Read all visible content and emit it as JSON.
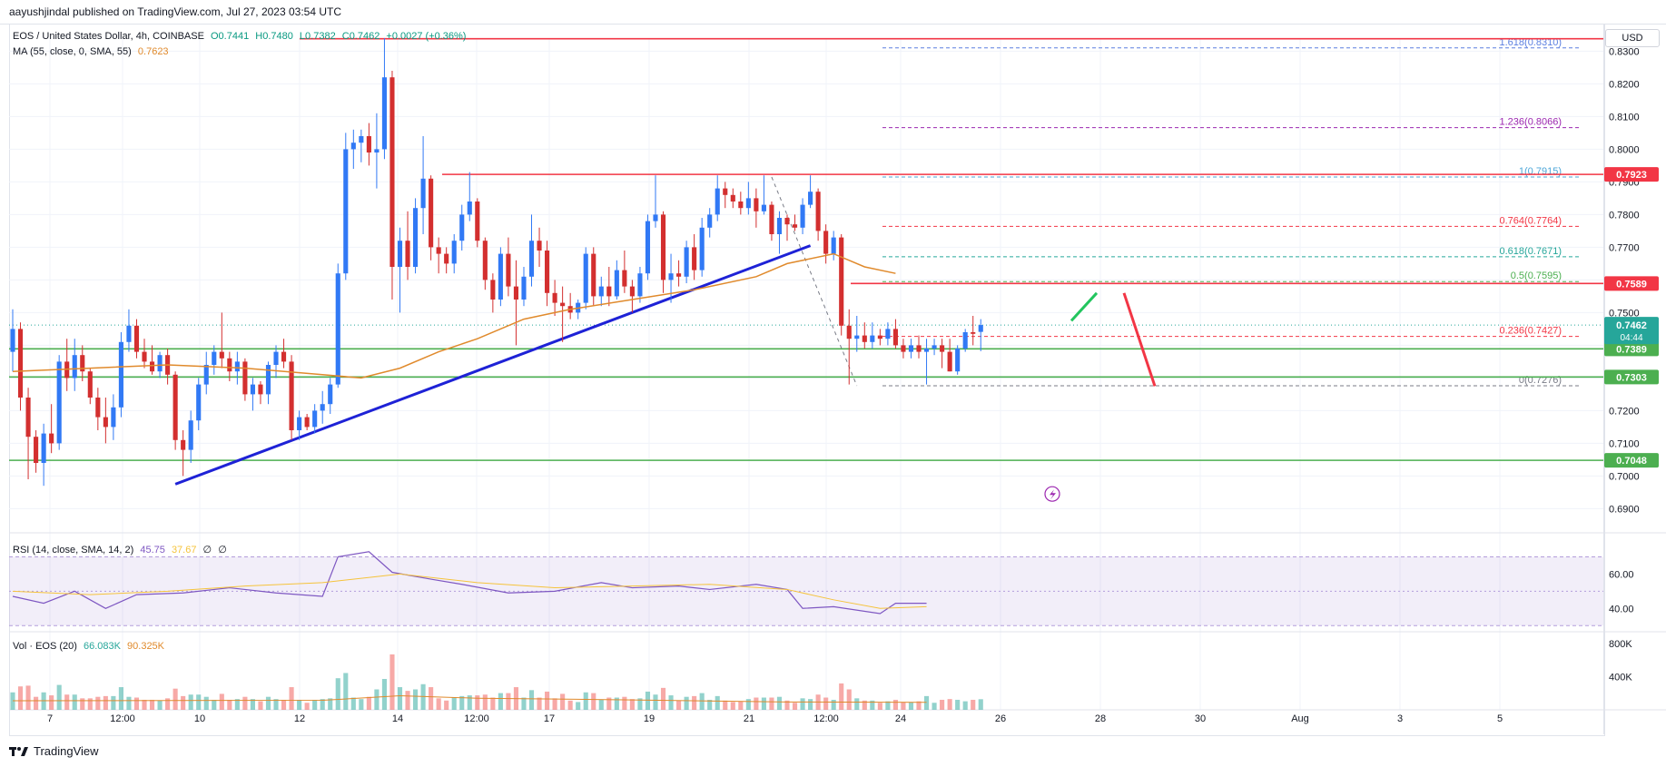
{
  "header": {
    "publisher": "aayushjindal published on TradingView.com, Jul 27, 2023 03:54 UTC"
  },
  "legend": {
    "symbol": "EOS / United States Dollar, 4h, COINBASE",
    "open": "O0.7441",
    "high": "H0.7480",
    "low": "L0.7382",
    "close": "C0.7462",
    "change": "+0.0027 (+0.36%)",
    "ma_label": "MA (55, close, 0, SMA, 55)",
    "ma_value": "0.7623",
    "rsi_label": "RSI (14, close, SMA, 14, 2)",
    "rsi_value": "45.75",
    "rsi_ma_value": "37.67",
    "rsi_extra1": "∅",
    "rsi_extra2": "∅",
    "vol_label": "Vol · EOS (20)",
    "vol_value": "66.083K",
    "vol_ma_value": "90.325K"
  },
  "currency": "USD",
  "footer": {
    "brand": "TradingView"
  },
  "colors": {
    "up": "#26a69a",
    "down": "#ef5350",
    "ma": "#e08a2c",
    "resistance": "#f23645",
    "support": "#4caf50",
    "trendline": "#1e22d6",
    "rsi": "#7e57c2",
    "rsi_ma": "#f5c33b",
    "fib_dashed": "#5b7fe0"
  },
  "chart_data": {
    "type": "candlestick",
    "symbol": "EOS/USD",
    "interval": "4h",
    "ylim": [
      0.684,
      0.834
    ],
    "y_ticks": [
      0.69,
      0.7,
      0.71,
      0.72,
      0.73,
      0.74,
      0.75,
      0.76,
      0.77,
      0.78,
      0.79,
      0.8,
      0.81,
      0.82,
      0.83
    ],
    "x_tick_labels": [
      "7",
      "12:00",
      "10",
      "12",
      "14",
      "12:00",
      "17",
      "19",
      "21",
      "12:00",
      "24",
      "26",
      "28",
      "30",
      "Aug",
      "3",
      "5"
    ],
    "candles": [
      [
        0.738,
        0.751,
        0.732,
        0.745
      ],
      [
        0.745,
        0.747,
        0.72,
        0.724
      ],
      [
        0.724,
        0.727,
        0.699,
        0.712
      ],
      [
        0.712,
        0.714,
        0.701,
        0.704
      ],
      [
        0.704,
        0.716,
        0.697,
        0.713
      ],
      [
        0.713,
        0.722,
        0.707,
        0.71
      ],
      [
        0.71,
        0.737,
        0.708,
        0.735
      ],
      [
        0.735,
        0.742,
        0.726,
        0.73
      ],
      [
        0.73,
        0.742,
        0.726,
        0.737
      ],
      [
        0.737,
        0.74,
        0.729,
        0.732
      ],
      [
        0.732,
        0.733,
        0.722,
        0.724
      ],
      [
        0.724,
        0.727,
        0.714,
        0.718
      ],
      [
        0.718,
        0.724,
        0.71,
        0.715
      ],
      [
        0.715,
        0.725,
        0.711,
        0.721
      ],
      [
        0.721,
        0.744,
        0.718,
        0.741
      ],
      [
        0.741,
        0.751,
        0.738,
        0.746
      ],
      [
        0.746,
        0.748,
        0.736,
        0.738
      ],
      [
        0.738,
        0.742,
        0.733,
        0.735
      ],
      [
        0.735,
        0.74,
        0.731,
        0.732
      ],
      [
        0.732,
        0.738,
        0.73,
        0.737
      ],
      [
        0.737,
        0.739,
        0.728,
        0.731
      ],
      [
        0.731,
        0.732,
        0.708,
        0.711
      ],
      [
        0.711,
        0.714,
        0.7,
        0.708
      ],
      [
        0.708,
        0.72,
        0.704,
        0.717
      ],
      [
        0.717,
        0.73,
        0.714,
        0.728
      ],
      [
        0.728,
        0.738,
        0.725,
        0.734
      ],
      [
        0.734,
        0.74,
        0.731,
        0.738
      ],
      [
        0.738,
        0.75,
        0.733,
        0.736
      ],
      [
        0.736,
        0.738,
        0.729,
        0.732
      ],
      [
        0.732,
        0.738,
        0.728,
        0.735
      ],
      [
        0.735,
        0.736,
        0.723,
        0.725
      ],
      [
        0.725,
        0.73,
        0.72,
        0.728
      ],
      [
        0.728,
        0.729,
        0.722,
        0.725
      ],
      [
        0.725,
        0.735,
        0.722,
        0.734
      ],
      [
        0.734,
        0.74,
        0.73,
        0.738
      ],
      [
        0.738,
        0.742,
        0.733,
        0.735
      ],
      [
        0.735,
        0.737,
        0.711,
        0.714
      ],
      [
        0.714,
        0.72,
        0.711,
        0.718
      ],
      [
        0.718,
        0.719,
        0.714,
        0.715
      ],
      [
        0.715,
        0.722,
        0.713,
        0.72
      ],
      [
        0.72,
        0.726,
        0.716,
        0.722
      ],
      [
        0.722,
        0.73,
        0.719,
        0.728
      ],
      [
        0.728,
        0.765,
        0.727,
        0.762
      ],
      [
        0.762,
        0.805,
        0.76,
        0.8
      ],
      [
        0.8,
        0.806,
        0.794,
        0.802
      ],
      [
        0.802,
        0.806,
        0.796,
        0.804
      ],
      [
        0.804,
        0.808,
        0.795,
        0.799
      ],
      [
        0.799,
        0.811,
        0.788,
        0.8
      ],
      [
        0.8,
        0.834,
        0.797,
        0.822
      ],
      [
        0.822,
        0.824,
        0.754,
        0.764
      ],
      [
        0.764,
        0.776,
        0.75,
        0.772
      ],
      [
        0.772,
        0.781,
        0.76,
        0.764
      ],
      [
        0.764,
        0.785,
        0.762,
        0.782
      ],
      [
        0.782,
        0.804,
        0.774,
        0.791
      ],
      [
        0.791,
        0.792,
        0.766,
        0.77
      ],
      [
        0.77,
        0.773,
        0.762,
        0.768
      ],
      [
        0.768,
        0.77,
        0.762,
        0.765
      ],
      [
        0.765,
        0.774,
        0.762,
        0.772
      ],
      [
        0.772,
        0.783,
        0.769,
        0.78
      ],
      [
        0.78,
        0.793,
        0.778,
        0.784
      ],
      [
        0.784,
        0.785,
        0.77,
        0.772
      ],
      [
        0.772,
        0.773,
        0.757,
        0.76
      ],
      [
        0.76,
        0.762,
        0.75,
        0.754
      ],
      [
        0.754,
        0.77,
        0.752,
        0.768
      ],
      [
        0.768,
        0.773,
        0.755,
        0.758
      ],
      [
        0.758,
        0.766,
        0.74,
        0.754
      ],
      [
        0.754,
        0.764,
        0.752,
        0.761
      ],
      [
        0.761,
        0.78,
        0.758,
        0.772
      ],
      [
        0.772,
        0.776,
        0.764,
        0.769
      ],
      [
        0.769,
        0.772,
        0.752,
        0.756
      ],
      [
        0.756,
        0.76,
        0.749,
        0.753
      ],
      [
        0.753,
        0.758,
        0.741,
        0.752
      ],
      [
        0.752,
        0.756,
        0.748,
        0.75
      ],
      [
        0.75,
        0.754,
        0.748,
        0.753
      ],
      [
        0.753,
        0.77,
        0.751,
        0.768
      ],
      [
        0.768,
        0.77,
        0.752,
        0.755
      ],
      [
        0.755,
        0.761,
        0.752,
        0.758
      ],
      [
        0.758,
        0.764,
        0.752,
        0.755
      ],
      [
        0.755,
        0.766,
        0.754,
        0.763
      ],
      [
        0.763,
        0.769,
        0.756,
        0.758
      ],
      [
        0.758,
        0.76,
        0.75,
        0.755
      ],
      [
        0.755,
        0.764,
        0.753,
        0.762
      ],
      [
        0.762,
        0.78,
        0.76,
        0.778
      ],
      [
        0.778,
        0.792,
        0.776,
        0.78
      ],
      [
        0.78,
        0.781,
        0.756,
        0.76
      ],
      [
        0.76,
        0.768,
        0.753,
        0.762
      ],
      [
        0.762,
        0.766,
        0.758,
        0.761
      ],
      [
        0.761,
        0.772,
        0.759,
        0.77
      ],
      [
        0.77,
        0.774,
        0.76,
        0.763
      ],
      [
        0.763,
        0.779,
        0.761,
        0.776
      ],
      [
        0.776,
        0.782,
        0.773,
        0.78
      ],
      [
        0.78,
        0.792,
        0.778,
        0.788
      ],
      [
        0.788,
        0.79,
        0.782,
        0.786
      ],
      [
        0.786,
        0.788,
        0.782,
        0.784
      ],
      [
        0.784,
        0.787,
        0.78,
        0.782
      ],
      [
        0.782,
        0.79,
        0.78,
        0.785
      ],
      [
        0.785,
        0.788,
        0.776,
        0.781
      ],
      [
        0.781,
        0.792,
        0.78,
        0.783
      ],
      [
        0.783,
        0.784,
        0.772,
        0.774
      ],
      [
        0.774,
        0.781,
        0.768,
        0.779
      ],
      [
        0.779,
        0.78,
        0.772,
        0.777
      ],
      [
        0.777,
        0.78,
        0.775,
        0.776
      ],
      [
        0.776,
        0.785,
        0.774,
        0.783
      ],
      [
        0.783,
        0.792,
        0.782,
        0.787
      ],
      [
        0.787,
        0.788,
        0.772,
        0.775
      ],
      [
        0.775,
        0.777,
        0.765,
        0.768
      ],
      [
        0.768,
        0.775,
        0.766,
        0.773
      ],
      [
        0.773,
        0.774,
        0.743,
        0.746
      ],
      [
        0.746,
        0.751,
        0.728,
        0.742
      ],
      [
        0.742,
        0.749,
        0.738,
        0.743
      ],
      [
        0.743,
        0.747,
        0.739,
        0.741
      ],
      [
        0.741,
        0.747,
        0.739,
        0.743
      ],
      [
        0.743,
        0.745,
        0.74,
        0.742
      ],
      [
        0.742,
        0.747,
        0.74,
        0.745
      ],
      [
        0.745,
        0.748,
        0.739,
        0.74
      ],
      [
        0.74,
        0.742,
        0.736,
        0.738
      ],
      [
        0.738,
        0.742,
        0.736,
        0.74
      ],
      [
        0.74,
        0.743,
        0.736,
        0.738
      ],
      [
        0.738,
        0.742,
        0.728,
        0.739
      ],
      [
        0.739,
        0.742,
        0.737,
        0.74
      ],
      [
        0.74,
        0.742,
        0.733,
        0.738
      ],
      [
        0.738,
        0.742,
        0.732,
        0.732
      ],
      [
        0.732,
        0.74,
        0.731,
        0.739
      ],
      [
        0.739,
        0.745,
        0.738,
        0.744
      ],
      [
        0.744,
        0.749,
        0.74,
        0.7435
      ],
      [
        0.7441,
        0.748,
        0.7382,
        0.7462
      ]
    ],
    "ma55": [
      [
        0,
        0.732
      ],
      [
        10,
        0.733
      ],
      [
        20,
        0.734
      ],
      [
        30,
        0.733
      ],
      [
        40,
        0.731
      ],
      [
        45,
        0.73
      ],
      [
        50,
        0.733
      ],
      [
        55,
        0.738
      ],
      [
        60,
        0.742
      ],
      [
        66,
        0.748
      ],
      [
        72,
        0.751
      ],
      [
        80,
        0.754
      ],
      [
        88,
        0.757
      ],
      [
        96,
        0.761
      ],
      [
        100,
        0.765
      ],
      [
        106,
        0.768
      ],
      [
        110,
        0.764
      ],
      [
        114,
        0.762
      ]
    ],
    "price_lines": [
      {
        "value": 0.8338,
        "label": "",
        "color": "#f23645"
      },
      {
        "value": 0.7923,
        "label": "0.7923",
        "color": "#f23645"
      },
      {
        "value": 0.7589,
        "label": "0.7589",
        "color": "#f23645"
      },
      {
        "value": 0.7389,
        "label": "0.7389",
        "color": "#4caf50"
      },
      {
        "value": 0.7303,
        "label": "0.7303",
        "color": "#4caf50"
      },
      {
        "value": 0.7048,
        "label": "0.7048",
        "color": "#4caf50"
      }
    ],
    "current_price": {
      "value": 0.7462,
      "label": "0.7462",
      "countdown": "04:44"
    },
    "fib_levels": [
      {
        "ratio": "1.618",
        "value": 0.831,
        "label": "1.618(0.8310)"
      },
      {
        "ratio": "1.236",
        "value": 0.8066,
        "label": "1.236(0.8066)"
      },
      {
        "ratio": "1",
        "value": 0.7915,
        "label": "1(0.7915)"
      },
      {
        "ratio": "0.764",
        "value": 0.7764,
        "label": "0.764(0.7764)"
      },
      {
        "ratio": "0.618",
        "value": 0.7671,
        "label": "0.618(0.7671)"
      },
      {
        "ratio": "0.5",
        "value": 0.7595,
        "label": "0.5(0.7595)"
      },
      {
        "ratio": "0.236",
        "value": 0.7427,
        "label": "0.236(0.7427)"
      },
      {
        "ratio": "0",
        "value": 0.7276,
        "label": "0(0.7276)"
      }
    ],
    "rsi": {
      "ylim": [
        28,
        75
      ],
      "ticks": [
        40.0,
        60.0
      ],
      "band": [
        30,
        70
      ],
      "values": [
        [
          0,
          47
        ],
        [
          4,
          43
        ],
        [
          8,
          50
        ],
        [
          12,
          40
        ],
        [
          16,
          48
        ],
        [
          22,
          49
        ],
        [
          28,
          52
        ],
        [
          34,
          49
        ],
        [
          40,
          47
        ],
        [
          42,
          70
        ],
        [
          46,
          73
        ],
        [
          49,
          61
        ],
        [
          54,
          57
        ],
        [
          58,
          54
        ],
        [
          64,
          49
        ],
        [
          70,
          50
        ],
        [
          76,
          55
        ],
        [
          80,
          52
        ],
        [
          86,
          53
        ],
        [
          90,
          51
        ],
        [
          96,
          54
        ],
        [
          100,
          51
        ],
        [
          102,
          40
        ],
        [
          106,
          41
        ],
        [
          112,
          37
        ],
        [
          114,
          43
        ],
        [
          118,
          43
        ]
      ],
      "ma": [
        [
          0,
          50
        ],
        [
          10,
          48
        ],
        [
          20,
          50
        ],
        [
          30,
          53
        ],
        [
          40,
          55
        ],
        [
          50,
          60
        ],
        [
          60,
          55
        ],
        [
          70,
          52
        ],
        [
          80,
          53
        ],
        [
          90,
          54
        ],
        [
          100,
          51
        ],
        [
          106,
          45
        ],
        [
          112,
          40
        ],
        [
          118,
          41
        ]
      ]
    },
    "volume": {
      "ylim": [
        0,
        900000
      ],
      "ticks": [
        "400K",
        "800K"
      ],
      "tick_values": [
        400000,
        800000
      ],
      "ma": [
        [
          0,
          110000
        ],
        [
          40,
          115000
        ],
        [
          50,
          170000
        ],
        [
          60,
          140000
        ],
        [
          80,
          120000
        ],
        [
          100,
          95000
        ],
        [
          118,
          90000
        ]
      ]
    }
  }
}
